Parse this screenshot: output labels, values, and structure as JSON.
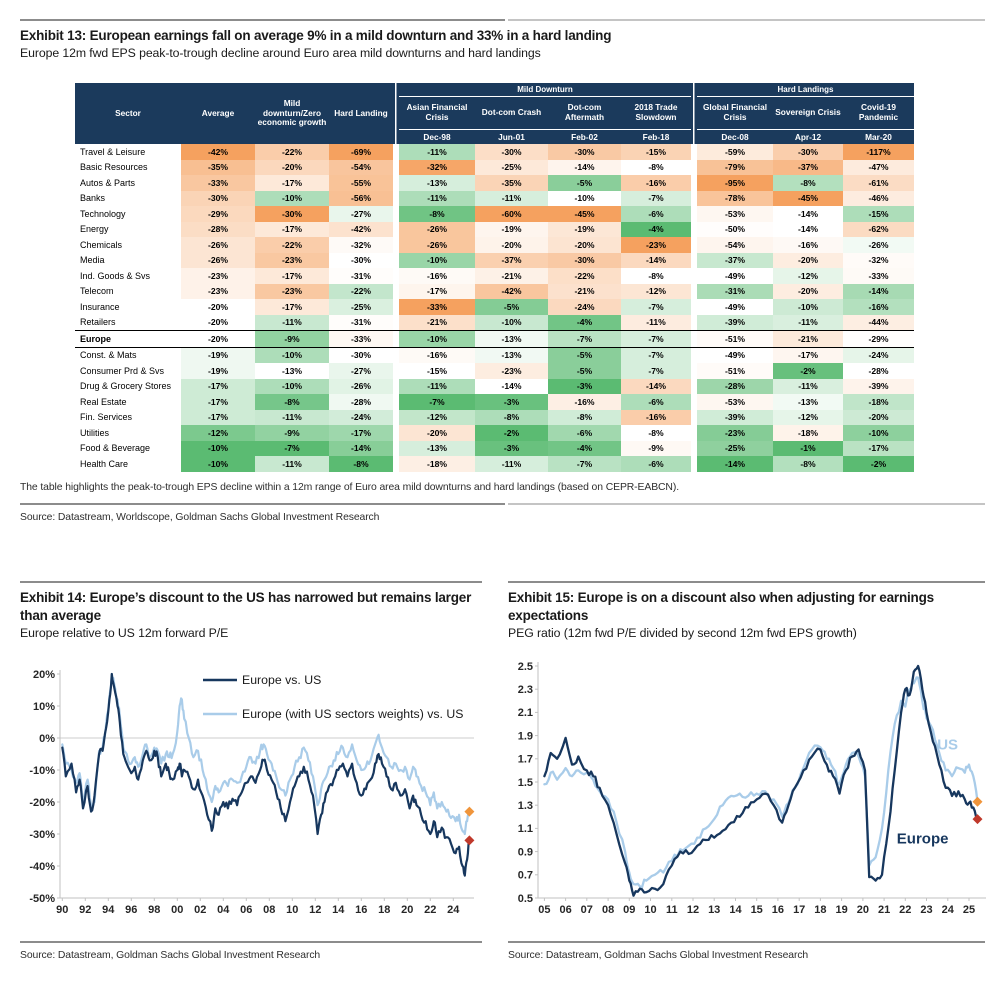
{
  "exhibit13": {
    "title": "Exhibit 13: European earnings fall on average 9% in a mild downturn and 33% in a hard landing",
    "subtitle": "Europe 12m fwd EPS peak-to-trough decline around Euro area mild downturns and hard landings",
    "footnote": "The table highlights the peak-to-trough EPS decline within a 12m range of Euro area mild downturns and hard landings (based on CEPR-EABCN).",
    "source": "Source: Datastream, Worldscope, Goldman Sachs Global Investment Research",
    "table": {
      "groups": [
        "Mild Downturn",
        "Hard Landings"
      ],
      "sector_header": "Sector",
      "fixed_columns": [
        "Average",
        "Mild downturn/Zero economic growth",
        "Hard Landing"
      ],
      "crisis_columns": [
        {
          "label": "Asian Financial Crisis",
          "date": "Dec-98"
        },
        {
          "label": "Dot-com Crash",
          "date": "Jun-01"
        },
        {
          "label": "Dot-com Aftermath",
          "date": "Feb-02"
        },
        {
          "label": "2018 Trade Slowdown",
          "date": "Feb-18"
        },
        {
          "label": "Global Financial Crisis",
          "date": "Dec-08"
        },
        {
          "label": "Sovereign Crisis",
          "date": "Apr-12"
        },
        {
          "label": "Covid-19 Pandemic",
          "date": "Mar-20"
        }
      ],
      "heatmap": {
        "low": "#F5A15F",
        "mid": "#FFFFFF",
        "high": "#5BBB72"
      },
      "rows": [
        {
          "sector": "Travel & Leisure",
          "bold": false,
          "values": [
            -42,
            -22,
            -69,
            -11,
            -30,
            -30,
            -15,
            -59,
            -30,
            -117
          ]
        },
        {
          "sector": "Basic Resources",
          "bold": false,
          "values": [
            -35,
            -20,
            -54,
            -32,
            -25,
            -14,
            -8,
            -79,
            -37,
            -47
          ]
        },
        {
          "sector": "Autos & Parts",
          "bold": false,
          "values": [
            -33,
            -17,
            -55,
            -13,
            -35,
            -5,
            -16,
            -95,
            -8,
            -61
          ]
        },
        {
          "sector": "Banks",
          "bold": false,
          "values": [
            -30,
            -10,
            -56,
            -11,
            -11,
            -10,
            -7,
            -78,
            -45,
            -46
          ]
        },
        {
          "sector": "Technology",
          "bold": false,
          "values": [
            -29,
            -30,
            -27,
            -8,
            -60,
            -45,
            -6,
            -53,
            -14,
            -15
          ]
        },
        {
          "sector": "Energy",
          "bold": false,
          "values": [
            -28,
            -17,
            -42,
            -26,
            -19,
            -19,
            -4,
            -50,
            -14,
            -62
          ]
        },
        {
          "sector": "Chemicals",
          "bold": false,
          "values": [
            -26,
            -22,
            -32,
            -26,
            -20,
            -20,
            -23,
            -54,
            -16,
            -26
          ]
        },
        {
          "sector": "Media",
          "bold": false,
          "values": [
            -26,
            -23,
            -30,
            -10,
            -37,
            -30,
            -14,
            -37,
            -20,
            -32
          ]
        },
        {
          "sector": "Ind. Goods & Svs",
          "bold": false,
          "values": [
            -23,
            -17,
            -31,
            -16,
            -21,
            -22,
            -8,
            -49,
            -12,
            -33
          ]
        },
        {
          "sector": "Telecom",
          "bold": false,
          "values": [
            -23,
            -23,
            -22,
            -17,
            -42,
            -21,
            -12,
            -31,
            -20,
            -14
          ]
        },
        {
          "sector": "Insurance",
          "bold": false,
          "values": [
            -20,
            -17,
            -25,
            -33,
            -5,
            -24,
            -7,
            -49,
            -10,
            -16
          ]
        },
        {
          "sector": "Retailers",
          "bold": false,
          "values": [
            -20,
            -11,
            -31,
            -21,
            -10,
            -4,
            -11,
            -39,
            -11,
            -44
          ]
        },
        {
          "sector": "Europe",
          "bold": true,
          "values": [
            -20,
            -9,
            -33,
            -10,
            -13,
            -7,
            -7,
            -51,
            -21,
            -29
          ]
        },
        {
          "sector": "Const. & Mats",
          "bold": false,
          "values": [
            -19,
            -10,
            -30,
            -16,
            -13,
            -5,
            -7,
            -49,
            -17,
            -24
          ]
        },
        {
          "sector": "Consumer Prd & Svs",
          "bold": false,
          "values": [
            -19,
            -13,
            -27,
            -15,
            -23,
            -5,
            -7,
            -51,
            -2,
            -28
          ]
        },
        {
          "sector": "Drug & Grocery Stores",
          "bold": false,
          "values": [
            -17,
            -10,
            -26,
            -11,
            -14,
            -3,
            -14,
            -28,
            -11,
            -39
          ]
        },
        {
          "sector": "Real Estate",
          "bold": false,
          "values": [
            -17,
            -8,
            -28,
            -7,
            -3,
            -16,
            -6,
            -53,
            -13,
            -18
          ]
        },
        {
          "sector": "Fin. Services",
          "bold": false,
          "values": [
            -17,
            -11,
            -24,
            -12,
            -8,
            -8,
            -16,
            -39,
            -12,
            -20
          ]
        },
        {
          "sector": "Utilities",
          "bold": false,
          "values": [
            -12,
            -9,
            -17,
            -20,
            -2,
            -6,
            -8,
            -23,
            -18,
            -10
          ]
        },
        {
          "sector": "Food & Beverage",
          "bold": false,
          "values": [
            -10,
            -7,
            -14,
            -13,
            -3,
            -4,
            -9,
            -25,
            -1,
            -17
          ]
        },
        {
          "sector": "Health Care",
          "bold": false,
          "values": [
            -10,
            -11,
            -8,
            -18,
            -11,
            -7,
            -6,
            -14,
            -8,
            -2
          ]
        }
      ]
    }
  },
  "exhibit14": {
    "title": "Exhibit 14: Europe’s discount to the US has narrowed but remains larger than average",
    "subtitle": "Europe relative to US 12m forward P/E",
    "source": "Source: Datastream, Goldman Sachs Global Investment Research"
  },
  "exhibit15": {
    "title": "Exhibit 15: Europe is on a discount also when adjusting for earnings expectations",
    "subtitle": "PEG ratio (12m fwd P/E divided by second 12m fwd EPS growth)",
    "source": "Source: Datastream, Goldman Sachs Global Investment Research"
  },
  "chart_data": [
    {
      "type": "line",
      "title": "Europe relative to US 12m forward P/E",
      "xlim": [
        1989.8,
        2025.8
      ],
      "ylim": [
        -50,
        20
      ],
      "yticks": [
        20,
        10,
        0,
        -10,
        -20,
        -30,
        -40,
        -50
      ],
      "ytick_format": "pct",
      "zero_gridline": true,
      "legend_position": "upper-right-inside",
      "xticks": [
        1990,
        1992,
        1994,
        1996,
        1998,
        2000,
        2002,
        2004,
        2006,
        2008,
        2010,
        2012,
        2014,
        2016,
        2018,
        2020,
        2022,
        2024
      ],
      "xtick_labels": [
        "90",
        "92",
        "94",
        "96",
        "98",
        "00",
        "02",
        "04",
        "06",
        "08",
        "10",
        "12",
        "14",
        "16",
        "18",
        "20",
        "22",
        "24"
      ],
      "x": [
        1990.0,
        1990.3,
        1990.8,
        1991.2,
        1991.5,
        1991.8,
        1992.2,
        1992.5,
        1992.8,
        1993.2,
        1993.5,
        1993.8,
        1994.1,
        1994.3,
        1994.5,
        1994.8,
        1995.0,
        1995.3,
        1995.6,
        1996.0,
        1996.3,
        1996.6,
        1997.0,
        1997.3,
        1997.6,
        1998.0,
        1998.3,
        1998.6,
        1999.0,
        1999.3,
        1999.6,
        2000.0,
        2000.2,
        2000.4,
        2000.6,
        2001.0,
        2001.4,
        2001.8,
        2002.2,
        2002.6,
        2003.0,
        2003.3,
        2003.6,
        2004.0,
        2004.4,
        2004.8,
        2005.2,
        2005.6,
        2006.0,
        2006.4,
        2006.8,
        2007.2,
        2007.5,
        2007.8,
        2008.2,
        2008.6,
        2009.0,
        2009.4,
        2009.8,
        2010.2,
        2010.6,
        2011.0,
        2011.4,
        2011.8,
        2012.2,
        2012.5,
        2012.8,
        2013.2,
        2013.6,
        2014.0,
        2014.4,
        2014.8,
        2015.2,
        2015.6,
        2016.0,
        2016.4,
        2016.8,
        2017.2,
        2017.5,
        2017.8,
        2018.2,
        2018.6,
        2019.0,
        2019.4,
        2019.8,
        2020.2,
        2020.5,
        2020.8,
        2021.2,
        2021.6,
        2022.0,
        2022.3,
        2022.6,
        2023.0,
        2023.4,
        2023.8,
        2024.2,
        2024.5,
        2024.8,
        2025.0,
        2025.2,
        2025.4
      ],
      "series": [
        {
          "name": "Europe vs. US",
          "color": "#17375E",
          "values": [
            -3,
            -12,
            -8,
            -17,
            -13,
            -22,
            -15,
            -23,
            -18,
            -5,
            -4,
            3,
            12,
            20,
            16,
            10,
            5,
            -5,
            -8,
            -11,
            -9,
            -13,
            -7,
            -4,
            -7,
            -4,
            -6,
            -12,
            -8,
            -11,
            -13,
            -10,
            -8,
            -12,
            -10,
            -12,
            -16,
            -13,
            -18,
            -24,
            -29,
            -22,
            -24,
            -20,
            -22,
            -19,
            -21,
            -17,
            -14,
            -12,
            -14,
            -10,
            -7,
            -10,
            -13,
            -17,
            -22,
            -26,
            -20,
            -15,
            -12,
            -9,
            -13,
            -18,
            -30,
            -24,
            -20,
            -15,
            -13,
            -10,
            -8,
            -12,
            -8,
            -14,
            -18,
            -16,
            -13,
            -8,
            -5,
            -8,
            -12,
            -16,
            -14,
            -18,
            -16,
            -22,
            -18,
            -21,
            -24,
            -26,
            -30,
            -26,
            -31,
            -28,
            -31,
            -33,
            -36,
            -34,
            -40,
            -43,
            -38,
            -32
          ]
        },
        {
          "name": "Europe (with US sectors weights) vs. US",
          "color": "#A9CCE9",
          "values": [
            -2,
            -8,
            -10,
            -14,
            -11,
            -20,
            -13,
            -21,
            -20,
            -4,
            -3,
            4,
            13,
            20,
            17,
            12,
            7,
            -3,
            -5,
            -8,
            -6,
            -9,
            -5,
            -2,
            -6,
            -3,
            -4,
            -8,
            -5,
            -6,
            -5,
            2,
            10,
            12,
            6,
            0,
            -6,
            -4,
            -10,
            -16,
            -20,
            -15,
            -17,
            -14,
            -15,
            -13,
            -14,
            -12,
            -9,
            -6,
            -8,
            -4,
            -2,
            -5,
            -8,
            -12,
            -16,
            -18,
            -13,
            -9,
            -6,
            -3,
            -7,
            -12,
            -21,
            -16,
            -13,
            -9,
            -7,
            -5,
            -3,
            -6,
            -2,
            -7,
            -10,
            -9,
            -7,
            -2,
            1,
            -3,
            -6,
            -9,
            -8,
            -10,
            -9,
            -13,
            -9,
            -12,
            -15,
            -17,
            -21,
            -17,
            -22,
            -20,
            -23,
            -25,
            -26,
            -24,
            -29,
            -30,
            -26,
            -23
          ]
        }
      ],
      "end_markers": [
        {
          "series": 0,
          "value": -32,
          "color": "#C0392B",
          "name": "europe-end-marker"
        },
        {
          "series": 1,
          "value": -23,
          "color": "#F0953B",
          "name": "weighted-end-marker"
        }
      ]
    },
    {
      "type": "line",
      "title": "PEG ratio (12m fwd P/E divided by second 12m fwd EPS growth)",
      "xlim": [
        2004.7,
        2025.8
      ],
      "ylim": [
        0.5,
        2.5
      ],
      "yticks": [
        2.5,
        2.3,
        2.1,
        1.9,
        1.7,
        1.5,
        1.3,
        1.1,
        0.9,
        0.7,
        0.5
      ],
      "ytick_format": "dec1",
      "zero_gridline": false,
      "xticks": [
        2005,
        2006,
        2007,
        2008,
        2009,
        2010,
        2011,
        2012,
        2013,
        2014,
        2015,
        2016,
        2017,
        2018,
        2019,
        2020,
        2021,
        2022,
        2023,
        2024,
        2025
      ],
      "xtick_labels": [
        "05",
        "06",
        "07",
        "08",
        "09",
        "10",
        "11",
        "12",
        "13",
        "14",
        "15",
        "16",
        "17",
        "18",
        "19",
        "20",
        "21",
        "22",
        "23",
        "24",
        "25"
      ],
      "x": [
        2005.0,
        2005.3,
        2005.6,
        2006.0,
        2006.3,
        2006.6,
        2007.0,
        2007.3,
        2007.6,
        2008.0,
        2008.4,
        2008.8,
        2009.0,
        2009.2,
        2009.5,
        2009.8,
        2010.2,
        2010.6,
        2011.0,
        2011.4,
        2011.8,
        2012.2,
        2012.6,
        2013.0,
        2013.4,
        2013.8,
        2014.2,
        2014.6,
        2015.0,
        2015.4,
        2015.8,
        2016.2,
        2016.5,
        2016.8,
        2017.2,
        2017.6,
        2018.0,
        2018.3,
        2018.6,
        2018.9,
        2019.2,
        2019.5,
        2019.8,
        2020.1,
        2020.3,
        2020.6,
        2020.9,
        2021.2,
        2021.5,
        2021.8,
        2022.0,
        2022.2,
        2022.4,
        2022.6,
        2022.8,
        2023.0,
        2023.3,
        2023.6,
        2023.9,
        2024.2,
        2024.5,
        2024.8,
        2025.0,
        2025.2,
        2025.4
      ],
      "series": [
        {
          "name": "Europe",
          "color": "#17375E",
          "values": [
            1.55,
            1.75,
            1.7,
            1.88,
            1.65,
            1.72,
            1.6,
            1.55,
            1.45,
            1.3,
            1.05,
            0.8,
            0.65,
            0.52,
            0.58,
            0.55,
            0.58,
            0.62,
            0.78,
            0.9,
            0.88,
            0.95,
            1.0,
            1.02,
            1.08,
            1.15,
            1.2,
            1.28,
            1.35,
            1.4,
            1.3,
            1.15,
            1.3,
            1.45,
            1.6,
            1.72,
            1.78,
            1.65,
            1.55,
            1.4,
            1.6,
            1.72,
            1.78,
            1.6,
            0.68,
            0.65,
            0.7,
            1.1,
            1.6,
            2.1,
            2.3,
            2.25,
            2.45,
            2.5,
            2.3,
            2.1,
            1.85,
            1.65,
            1.45,
            1.38,
            1.42,
            1.35,
            1.32,
            1.28,
            1.18
          ]
        },
        {
          "name": "US",
          "color": "#A9CCE9",
          "values": [
            1.48,
            1.58,
            1.52,
            1.62,
            1.55,
            1.6,
            1.58,
            1.52,
            1.42,
            1.35,
            1.15,
            0.9,
            0.72,
            0.62,
            0.6,
            0.65,
            0.7,
            0.72,
            0.82,
            0.92,
            0.95,
            1.02,
            1.1,
            1.18,
            1.3,
            1.38,
            1.4,
            1.38,
            1.4,
            1.42,
            1.35,
            1.2,
            1.32,
            1.45,
            1.62,
            1.78,
            1.8,
            1.7,
            1.62,
            1.48,
            1.65,
            1.75,
            1.72,
            1.55,
            0.78,
            0.85,
            1.1,
            1.6,
            2.0,
            2.2,
            2.15,
            2.3,
            2.35,
            2.4,
            2.2,
            2.05,
            1.95,
            1.75,
            1.6,
            1.55,
            1.62,
            1.58,
            1.65,
            1.55,
            1.33
          ]
        }
      ],
      "annotations": [
        {
          "text": "US",
          "color": "#A9CCE9",
          "x": 2023.5,
          "y": 1.78
        },
        {
          "text": "Europe",
          "color": "#17375E",
          "x": 2021.6,
          "y": 0.97
        }
      ],
      "end_markers": [
        {
          "series": 1,
          "value": 1.33,
          "color": "#F0953B",
          "name": "us-end-marker"
        },
        {
          "series": 0,
          "value": 1.18,
          "color": "#C0392B",
          "name": "europe-end-marker"
        }
      ]
    }
  ]
}
